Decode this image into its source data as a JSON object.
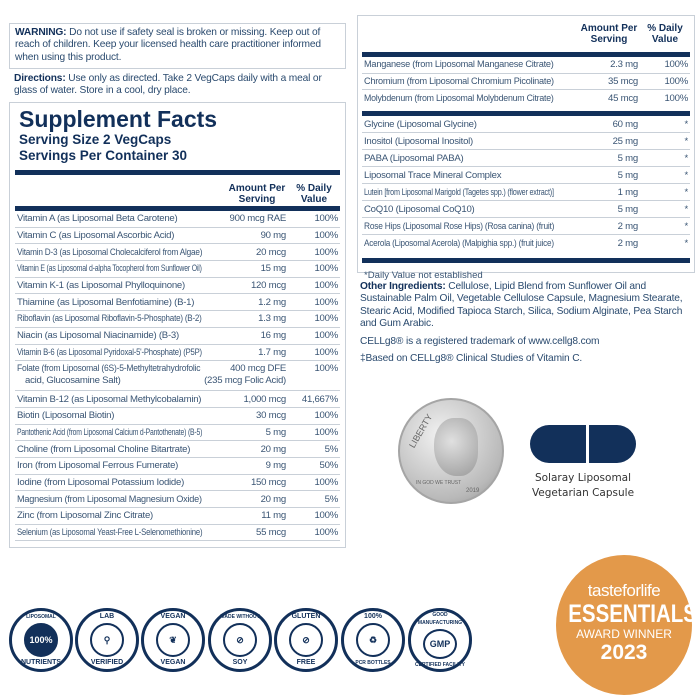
{
  "warning": {
    "label": "WARNING:",
    "text": " Do not use if safety seal is broken or missing. Keep out of reach of children. Keep your licensed health care practitioner informed when using this product."
  },
  "directions": {
    "label": "Directions:",
    "text": " Use only as directed. Take 2 VegCaps daily with a meal or glass of water. Store in a cool, dry place."
  },
  "facts": {
    "title": "Supplement Facts",
    "serving_size": "Serving Size 2 VegCaps",
    "servings": "Servings Per Container 30",
    "col_amount": "Amount Per Serving",
    "col_dv": "% Daily Value",
    "rows": [
      {
        "name": "Vitamin A (as Liposomal Beta Carotene)",
        "amount": "900 mcg RAE",
        "dv": "100%"
      },
      {
        "name": "Vitamin C (as Liposomal Ascorbic Acid)",
        "amount": "90 mg",
        "dv": "100%"
      },
      {
        "name": "Vitamin D-3 (as Liposomal Cholecalciferol from Algae)",
        "amount": "20 mcg",
        "dv": "100%"
      },
      {
        "name": "Vitamin E (as Liposomal d-alpha Tocopherol from Sunflower Oil)",
        "amount": "15 mg",
        "dv": "100%"
      },
      {
        "name": "Vitamin K-1 (as Liposomal Phylloquinone)",
        "amount": "120 mcg",
        "dv": "100%"
      },
      {
        "name": "Thiamine (as Liposomal Benfotiamine) (B-1)",
        "amount": "1.2 mg",
        "dv": "100%"
      },
      {
        "name": "Riboflavin (as Liposomal Riboflavin-5-Phosphate) (B-2)",
        "amount": "1.3 mg",
        "dv": "100%"
      },
      {
        "name": "Niacin (as Liposomal Niacinamide) (B-3)",
        "amount": "16 mg",
        "dv": "100%"
      },
      {
        "name": "Vitamin B-6 (as Liposomal Pyridoxal-5'-Phosphate) (P5P)",
        "amount": "1.7 mg",
        "dv": "100%"
      }
    ],
    "folate": {
      "name": "Folate (from Liposomal (6S)-5-Methyltetrahydrofolic",
      "name2": "acid, Glucosamine Salt)",
      "amount": "400 mcg DFE",
      "amount2": "(235 mcg Folic Acid)",
      "dv": "100%"
    },
    "rows2": [
      {
        "name": "Vitamin B-12 (as Liposomal Methylcobalamin)",
        "amount": "1,000 mcg",
        "dv": "41,667%"
      },
      {
        "name": "Biotin (Liposomal Biotin)",
        "amount": "30 mcg",
        "dv": "100%"
      },
      {
        "name": "Pantothenic Acid (from Liposomal Calcium d-Pantothenate) (B-5)",
        "amount": "5 mg",
        "dv": "100%"
      },
      {
        "name": "Choline (from Liposomal Choline Bitartrate)",
        "amount": "20 mg",
        "dv": "5%"
      },
      {
        "name": "Iron (from Liposomal Ferrous Fumerate)",
        "amount": "9 mg",
        "dv": "50%"
      },
      {
        "name": "Iodine (from Liposomal Potassium Iodide)",
        "amount": "150 mcg",
        "dv": "100%"
      },
      {
        "name": "Magnesium (from Liposomal Magnesium Oxide)",
        "amount": "20 mg",
        "dv": "5%"
      },
      {
        "name": "Zinc (from Liposomal Zinc Citrate)",
        "amount": "11 mg",
        "dv": "100%"
      },
      {
        "name": "Selenium (as Liposomal Yeast-Free L-Selenomethionine)",
        "amount": "55 mcg",
        "dv": "100%"
      }
    ]
  },
  "facts2": {
    "col_amount": "Amount Per Serving",
    "col_dv": "% Daily Value",
    "rows": [
      {
        "name": "Manganese (from Liposomal Manganese Citrate)",
        "amount": "2.3 mg",
        "dv": "100%"
      },
      {
        "name": "Chromium (from Liposomal Chromium Picolinate)",
        "amount": "35 mcg",
        "dv": "100%"
      },
      {
        "name": "Molybdenum (from Liposomal Molybdenum Citrate)",
        "amount": "45 mcg",
        "dv": "100%"
      }
    ],
    "rows2": [
      {
        "name": "Glycine (Liposomal Glycine)",
        "amount": "60 mg",
        "dv": "*"
      },
      {
        "name": "Inositol (Liposomal Inositol)",
        "amount": "25 mg",
        "dv": "*"
      },
      {
        "name": "PABA (Liposomal PABA)",
        "amount": "5 mg",
        "dv": "*"
      },
      {
        "name": "Liposomal Trace Mineral Complex",
        "amount": "5 mg",
        "dv": "*"
      },
      {
        "name": "Lutein [from Liposomal Marigold (Tagetes spp.) (flower extract)]",
        "amount": "1 mg",
        "dv": "*"
      },
      {
        "name": "CoQ10 (Liposomal CoQ10)",
        "amount": "5 mg",
        "dv": "*"
      },
      {
        "name": "Rose Hips (Liposomal Rose Hips) (Rosa canina) (fruit)",
        "amount": "2 mg",
        "dv": "*"
      },
      {
        "name": "Acerola (Liposomal Acerola) (Malpighia spp.) (fruit juice)",
        "amount": "2 mg",
        "dv": "*"
      }
    ],
    "footnote": "*Daily Value not established"
  },
  "other": {
    "label": "Other Ingredients:",
    "text": " Cellulose, Lipid Blend from Sunflower Oil and Sustainable Palm Oil, Vegetable Cellulose Capsule, Magnesium Stearate, Stearic Acid, Modified Tapioca Starch, Silica, Sodium Alginate, Pea Starch and Gum Arabic."
  },
  "trademark": "CELLg8® is a registered trademark of www.cellg8.com",
  "based_on": "‡Based on CELLg8® Clinical Studies of Vitamin C.",
  "dime": {
    "top": "LIBERTY",
    "date": "2019",
    "bottom": "IN GOD WE TRUST"
  },
  "capsule": {
    "caption1": "Solaray Liposomal",
    "caption2": "Vegetarian Capsule",
    "color": "#12305a"
  },
  "badges": [
    {
      "top": "LIPOSOMAL",
      "center": "100%",
      "bottom": "NUTRIENTS",
      "icon": "liposomal-icon"
    },
    {
      "top": "LAB",
      "center": "⚲",
      "bottom": "VERIFIED",
      "icon": "plant-icon"
    },
    {
      "top": "VEGAN",
      "center": "❦",
      "bottom": "VEGAN",
      "icon": "leaf-icon"
    },
    {
      "top": "MADE WITHOUT",
      "center": "⊘",
      "bottom": "SOY",
      "icon": "no-soy-icon"
    },
    {
      "top": "GLUTEN",
      "center": "⊘",
      "bottom": "FREE",
      "icon": "no-wheat-icon"
    },
    {
      "top": "100%",
      "center": "♻",
      "bottom": "PCR BOTTLES",
      "icon": "recycle-icon"
    },
    {
      "top": "GOOD MANUFACTURING",
      "center": "GMP",
      "bottom": "CERTIFIED FACILITY",
      "icon": "gmp-icon"
    }
  ],
  "award": {
    "brand": "tasteforlife",
    "title": "ESSENTIALS",
    "sub": "AWARD WINNER",
    "year": "2023",
    "color": "#e3994a"
  }
}
